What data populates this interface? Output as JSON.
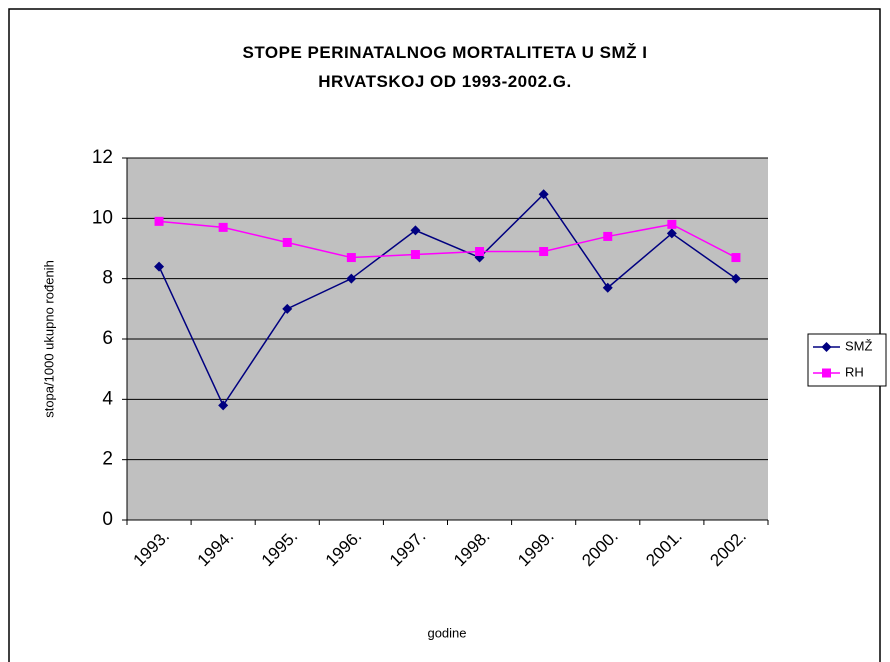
{
  "chart_data": {
    "type": "line",
    "title": "STOPE PERINATALNOG MORTALITETA U SMŽ I HRVATSKOJ OD 1993-2002.G.",
    "x_label": "godine",
    "y_label": "stopa/1000 ukupno rođenih",
    "categories": [
      "1993.",
      "1994.",
      "1995.",
      "1996.",
      "1997.",
      "1998.",
      "1999.",
      "2000.",
      "2001.",
      "2002."
    ],
    "series": [
      {
        "name": "SMŽ",
        "color": "#000080",
        "marker": "diamond",
        "values": [
          8.4,
          3.8,
          7.0,
          8.0,
          9.6,
          8.7,
          10.8,
          7.7,
          9.5,
          8.0
        ]
      },
      {
        "name": "RH",
        "color": "#ff00ff",
        "marker": "square",
        "values": [
          9.9,
          9.7,
          9.2,
          8.7,
          8.8,
          8.9,
          8.9,
          9.4,
          9.8,
          8.7
        ]
      }
    ],
    "ylim": [
      0,
      12
    ],
    "yticks": [
      0,
      2,
      4,
      6,
      8,
      10,
      12
    ],
    "grid": true,
    "legend": "right"
  }
}
